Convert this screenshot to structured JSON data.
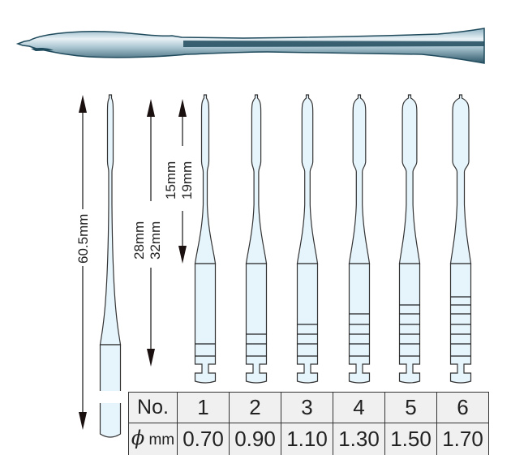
{
  "dimensions": {
    "overall_length": "60.5mm",
    "shank_lengths": [
      "28mm",
      "32mm"
    ],
    "working_lengths": [
      "15mm",
      "19mm"
    ]
  },
  "table": {
    "header_label": "No.",
    "diameter_symbol": "ϕ",
    "diameter_unit": "mm",
    "numbers": [
      "1",
      "2",
      "3",
      "4",
      "5",
      "6"
    ],
    "diameters": [
      "0.70",
      "0.90",
      "1.10",
      "1.30",
      "1.50",
      "1.70"
    ]
  },
  "colors": {
    "instrument_fill": "#e6f4fc",
    "outline": "#333333",
    "photo_tone": "#1f4a5c"
  }
}
